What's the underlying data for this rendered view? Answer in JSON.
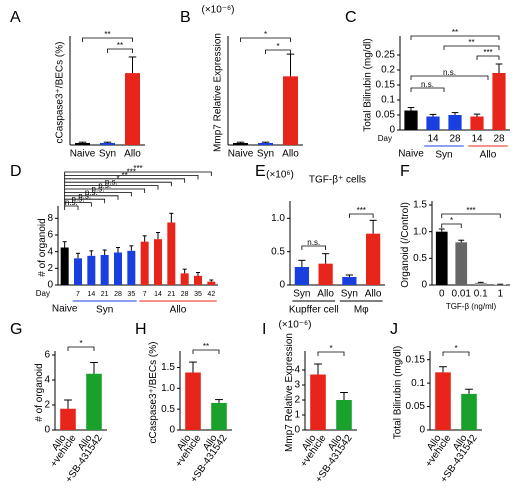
{
  "chart_data": [
    {
      "type": "bar",
      "label": "A",
      "ylabel": "cCaspase3⁺/BECs (%)",
      "categories": [
        "Naive",
        "Syn",
        "Allo"
      ],
      "values": [
        0.05,
        0.05,
        1.78
      ],
      "errors": [
        0.02,
        0.02,
        0.4
      ],
      "colors": [
        "#000000",
        "#1a3fe0",
        "#e8251a"
      ],
      "colored_labels": true,
      "ylim": [
        0,
        2.6
      ],
      "significance": [
        "**",
        "**"
      ]
    },
    {
      "type": "bar",
      "label": "B",
      "ylabel": "Mmp7 Relative Expression",
      "unit": "(×10⁻⁶)",
      "categories": [
        "Naive",
        "Syn",
        "Allo"
      ],
      "values": [
        0.05,
        0.05,
        1.7
      ],
      "errors": [
        0.02,
        0.02,
        0.55
      ],
      "colors": [
        "#000000",
        "#1a3fe0",
        "#e8251a"
      ],
      "colored_labels": true,
      "ylim": [
        0,
        2.6
      ],
      "significance": [
        "*",
        "*"
      ]
    },
    {
      "type": "bar",
      "label": "C",
      "ylabel": "Total Bilirubin (mg/dl)",
      "x_prefix": "Day",
      "categories": [
        "Naive",
        "14",
        "28",
        "14",
        "28"
      ],
      "groups": [
        "Syn",
        "Allo"
      ],
      "group_colors": [
        "#1a3fe0",
        "#e8251a"
      ],
      "values": [
        0.065,
        0.045,
        0.05,
        0.045,
        0.19
      ],
      "errors": [
        0.01,
        0.007,
        0.008,
        0.008,
        0.03
      ],
      "colors": [
        "#000000",
        "#1a3fe0",
        "#1a3fe0",
        "#e8251a",
        "#e8251a"
      ],
      "ylim": [
        0,
        0.3
      ],
      "yticks": [
        0,
        0.05,
        0.1,
        0.15,
        0.2,
        0.25
      ],
      "significance": [
        "**",
        "**",
        "***",
        "n.s.",
        "n.s."
      ]
    },
    {
      "type": "bar",
      "label": "D",
      "ylabel": "# of organoid",
      "x_prefix": "Day",
      "categories": [
        "Naive",
        "7",
        "14",
        "21",
        "28",
        "35",
        "7",
        "14",
        "21",
        "28",
        "35",
        "42"
      ],
      "groups": [
        "Syn",
        "Allo"
      ],
      "group_colors": [
        "#1a3fe0",
        "#e8251a"
      ],
      "values": [
        4.5,
        3.2,
        3.5,
        3.6,
        3.9,
        4.1,
        5.2,
        5.5,
        7.5,
        1.4,
        1.1,
        0.4
      ],
      "errors": [
        0.7,
        0.6,
        0.6,
        0.6,
        0.6,
        0.6,
        0.7,
        0.8,
        1.1,
        0.5,
        0.4,
        0.2
      ],
      "colors": [
        "#000000",
        "#1a3fe0",
        "#1a3fe0",
        "#1a3fe0",
        "#1a3fe0",
        "#1a3fe0",
        "#e8251a",
        "#e8251a",
        "#e8251a",
        "#e8251a",
        "#e8251a",
        "#e8251a"
      ],
      "ylim": [
        0,
        9
      ],
      "yticks": [
        0,
        2,
        4,
        6,
        8
      ],
      "significance": [
        "n.s.",
        "n.s.",
        "n.s.",
        "n.s.",
        "n.s.",
        "n.s.",
        "n.s.",
        "*",
        "**",
        "***",
        "***"
      ]
    },
    {
      "type": "bar",
      "label": "E",
      "title": "TGF-β⁺ cells",
      "unit": "(×10⁶)",
      "categories": [
        "Syn",
        "Allo",
        "Syn",
        "Allo"
      ],
      "groups": [
        "Kupffer cell",
        "Mφ"
      ],
      "values": [
        0.27,
        0.32,
        0.12,
        0.77
      ],
      "errors": [
        0.1,
        0.15,
        0.03,
        0.2
      ],
      "colors": [
        "#1a3fe0",
        "#e8251a",
        "#1a3fe0",
        "#e8251a"
      ],
      "colored_labels": true,
      "ylim": [
        0,
        1.2
      ],
      "yticks": [
        0,
        0.5,
        {
          "value": 1,
          "label": "1.0"
        }
      ],
      "significance": [
        "n.s.",
        "***"
      ]
    },
    {
      "type": "bar",
      "label": "F",
      "ylabel": "Organoid (/Control)",
      "xlabel": "TGF-β (ng/ml)",
      "categories": [
        "0",
        "0.01",
        "0.1",
        "1"
      ],
      "values": [
        1.0,
        0.8,
        0.04,
        0.01
      ],
      "errors": [
        0.05,
        0.04,
        0.01,
        0.005
      ],
      "colors": [
        "#000000",
        "#666666",
        "#999999",
        "#bbbbbb"
      ],
      "ylim": [
        0,
        1.5
      ],
      "yticks": [
        0,
        0.5,
        {
          "value": 1,
          "label": "1.0"
        },
        1.5
      ],
      "significance": [
        "*",
        "***"
      ]
    },
    {
      "type": "bar",
      "label": "G",
      "ylabel": "# of organoid",
      "categories": [
        [
          "Allo",
          "+vehicle"
        ],
        [
          "Allo",
          "+SB-431542"
        ]
      ],
      "values": [
        1.7,
        4.5
      ],
      "errors": [
        0.7,
        0.9
      ],
      "colors": [
        "#e8251a",
        "#1aa12b"
      ],
      "colored_labels": true,
      "ylim": [
        0,
        6
      ],
      "yticks": [
        0,
        2,
        4,
        6
      ],
      "significance": [
        "*"
      ]
    },
    {
      "type": "bar",
      "label": "H",
      "ylabel": "cCaspase3⁺/BECs (%)",
      "categories": [
        [
          "Allo",
          "+vehicle"
        ],
        [
          "Allo",
          "+SB-431542"
        ]
      ],
      "values": [
        1.38,
        0.65
      ],
      "errors": [
        0.25,
        0.08
      ],
      "colors": [
        "#e8251a",
        "#1aa12b"
      ],
      "colored_labels": true,
      "ylim": [
        0,
        1.8
      ],
      "yticks": [
        0,
        0.5,
        {
          "value": 1,
          "label": "1.0"
        },
        1.5
      ],
      "significance": [
        "**"
      ]
    },
    {
      "type": "bar",
      "label": "I",
      "ylabel": "Mmp7 Relative Expression",
      "unit": "(×10⁻⁶)",
      "categories": [
        [
          "Allo",
          "+vehicle"
        ],
        [
          "Allo",
          "+SB-431542"
        ]
      ],
      "values": [
        3.7,
        2.0
      ],
      "errors": [
        0.7,
        0.5
      ],
      "colors": [
        "#e8251a",
        "#1aa12b"
      ],
      "colored_labels": true,
      "ylim": [
        0,
        5
      ],
      "yticks": [
        0,
        1,
        2,
        3,
        4
      ],
      "significance": [
        "*"
      ]
    },
    {
      "type": "bar",
      "label": "J",
      "ylabel": "Total Bilirubin (mg/dl)",
      "categories": [
        [
          "Allo",
          "+vehicle"
        ],
        [
          "Allo",
          "+SB-431542"
        ]
      ],
      "values": [
        0.123,
        0.077
      ],
      "errors": [
        0.012,
        0.01
      ],
      "colors": [
        "#e8251a",
        "#1aa12b"
      ],
      "colored_labels": true,
      "ylim": [
        0,
        0.16
      ],
      "yticks": [
        0,
        0.05,
        0.1,
        0.15
      ],
      "significance": [
        "*"
      ]
    }
  ]
}
